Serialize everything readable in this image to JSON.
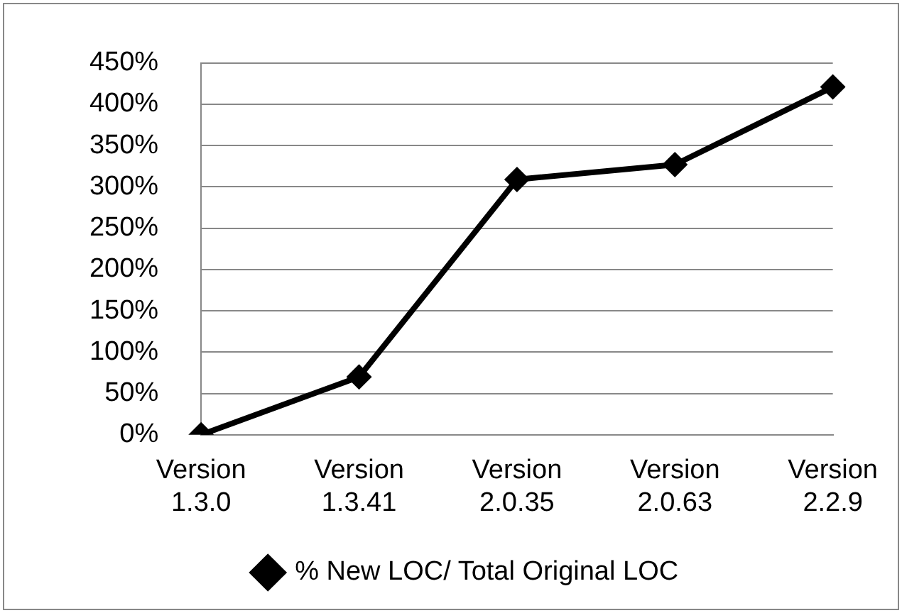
{
  "chart_data": {
    "type": "line",
    "categories": [
      "Version 1.3.0",
      "Version 1.3.41",
      "Version 2.0.35",
      "Version 2.0.63",
      "Version 2.2.9"
    ],
    "series": [
      {
        "name": "% New LOC/ Total Original LOC",
        "color": "#000000",
        "values": [
          0,
          70,
          309,
          327,
          421
        ]
      }
    ],
    "ylim": [
      0,
      450
    ],
    "yticks": [
      {
        "value": 0,
        "label": "0%"
      },
      {
        "value": 50,
        "label": "50%"
      },
      {
        "value": 100,
        "label": "100%"
      },
      {
        "value": 150,
        "label": "150%"
      },
      {
        "value": 200,
        "label": "200%"
      },
      {
        "value": 250,
        "label": "250%"
      },
      {
        "value": 300,
        "label": "300%"
      },
      {
        "value": 350,
        "label": "350%"
      },
      {
        "value": 400,
        "label": "400%"
      },
      {
        "value": 450,
        "label": "450%"
      }
    ],
    "grid": "y",
    "legend": "bottom",
    "marker": "diamond",
    "line_style": "solid"
  }
}
